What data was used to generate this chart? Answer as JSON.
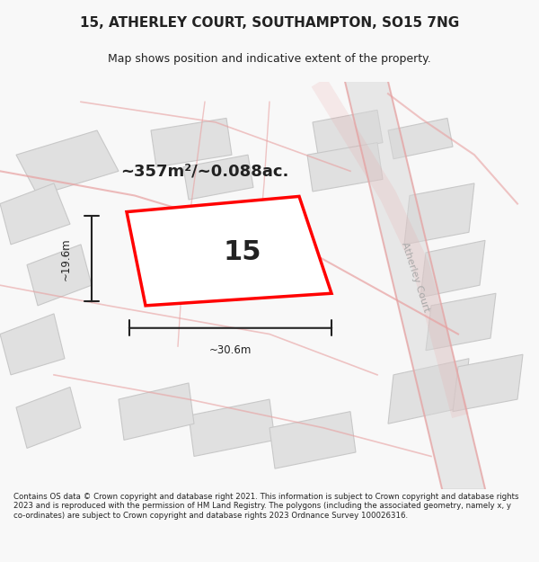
{
  "title_line1": "15, ATHERLEY COURT, SOUTHAMPTON, SO15 7NG",
  "title_line2": "Map shows position and indicative extent of the property.",
  "area_text": "~357m²/~0.088ac.",
  "number_label": "15",
  "dim_width": "~30.6m",
  "dim_height": "~19.6m",
  "street_label": "Atherley Court",
  "footer_text": "Contains OS data © Crown copyright and database right 2021. This information is subject to Crown copyright and database rights 2023 and is reproduced with the permission of HM Land Registry. The polygons (including the associated geometry, namely x, y co-ordinates) are subject to Crown copyright and database rights 2023 Ordnance Survey 100026316.",
  "bg_color": "#f8f8f8",
  "map_bg": "#f0f0f0",
  "building_fill": "#e0e0e0",
  "building_edge": "#c8c8c8",
  "highlight_color": "#ff0000",
  "road_pink": "#e8a0a0",
  "street_label_color": "#aaaaaa",
  "title_color": "#222222",
  "footer_color": "#222222",
  "dim_color": "#222222"
}
